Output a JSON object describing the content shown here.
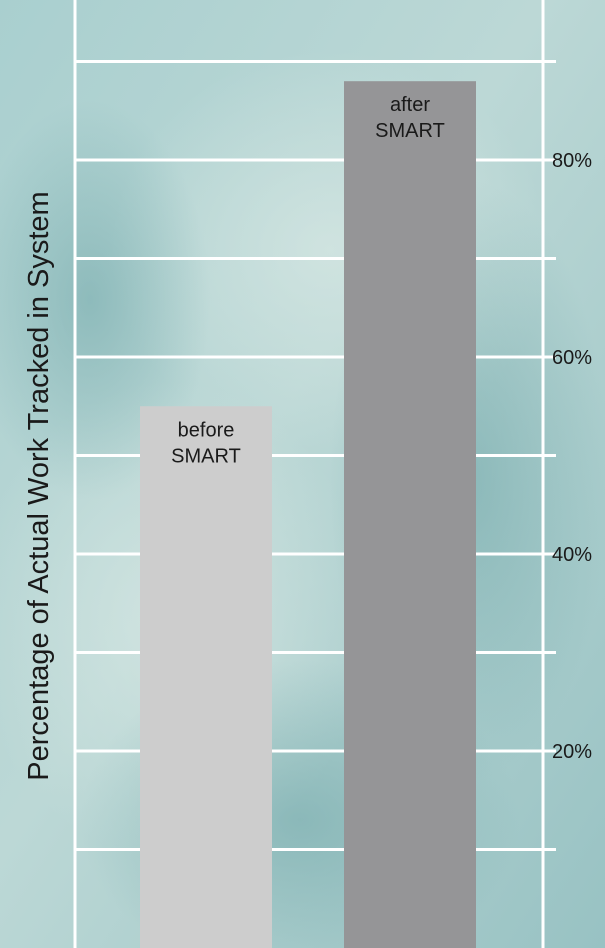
{
  "chart_data": {
    "type": "bar",
    "categories": [
      "before\nSMART",
      "after\nSMART"
    ],
    "values": [
      55,
      88
    ],
    "ylabel": "Percentage of Actual Work Tracked in System",
    "ylim": [
      0,
      96
    ],
    "yticks": [
      20,
      40,
      60,
      80
    ],
    "ytick_labels": [
      "20%",
      "40%",
      "60%",
      "80%"
    ],
    "grid_step": 10,
    "grid": true,
    "colors": {
      "before": "#cdcdcd",
      "after": "#959597",
      "grid": "#ffffff",
      "background": "#b9d6d6",
      "text": "#1a1a1a"
    }
  }
}
